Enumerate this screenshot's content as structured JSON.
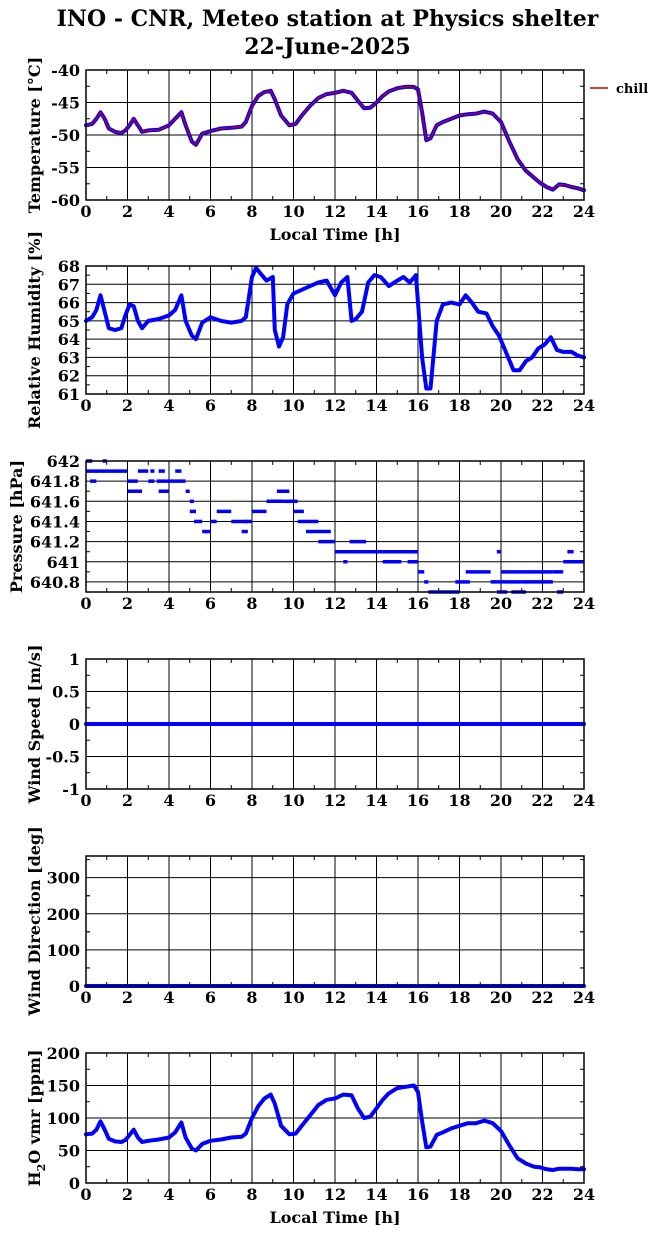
{
  "title": "INO - CNR, Meteo station at Physics shelter",
  "date": "22-June-2025",
  "colors": {
    "series": "#0000ff",
    "chill": "#cc0000",
    "axes": "#000000"
  },
  "chart_data": [
    {
      "type": "line",
      "ylabel_main": "Temperature [",
      "ylabel_unit": "°C",
      "ylabel_tail": "]",
      "xlabel": "Local Time [h]",
      "xlim": [
        0,
        24
      ],
      "xticks": [
        "0",
        "2",
        "4",
        "6",
        "8",
        "10",
        "12",
        "14",
        "16",
        "18",
        "20",
        "22",
        "24"
      ],
      "ylim": [
        -60,
        -40
      ],
      "yticks": [
        -60,
        -55,
        -50,
        -45,
        -40
      ],
      "ytick_labels": [
        "-60",
        "-55",
        "-50",
        "-45",
        "-40"
      ],
      "legend": "chill",
      "series": [
        {
          "name": "chill",
          "style": "line",
          "x": [
            0,
            0.3,
            0.5,
            0.7,
            0.9,
            1.1,
            1.4,
            1.7,
            1.9,
            2.1,
            2.3,
            2.5,
            2.7,
            3.0,
            3.5,
            4.0,
            4.3,
            4.6,
            4.8,
            5.1,
            5.3,
            5.6,
            6.0,
            6.5,
            7.0,
            7.5,
            7.7,
            8.0,
            8.3,
            8.6,
            8.9,
            9.1,
            9.4,
            9.8,
            10.1,
            10.4,
            10.8,
            11.2,
            11.6,
            12.0,
            12.4,
            12.8,
            13.1,
            13.4,
            13.7,
            14.0,
            14.3,
            14.6,
            15.0,
            15.4,
            15.8,
            16.0,
            16.2,
            16.4,
            16.6,
            16.9,
            17.2,
            17.6,
            18.0,
            18.4,
            18.8,
            19.2,
            19.6,
            20.0,
            20.4,
            20.8,
            21.2,
            21.6,
            21.9,
            22.2,
            22.5,
            22.8,
            23.1,
            23.4,
            23.7,
            24.0
          ],
          "y": [
            -48.5,
            -48.3,
            -47.5,
            -46.5,
            -47.5,
            -49.0,
            -49.5,
            -49.7,
            -49.3,
            -48.5,
            -47.5,
            -48.5,
            -49.5,
            -49.3,
            -49.2,
            -48.5,
            -47.5,
            -46.5,
            -48.5,
            -51.0,
            -51.5,
            -49.8,
            -49.4,
            -49.0,
            -48.9,
            -48.7,
            -48.0,
            -45.5,
            -44.0,
            -43.4,
            -43.2,
            -44.5,
            -47.0,
            -48.5,
            -48.3,
            -47.0,
            -45.5,
            -44.3,
            -43.7,
            -43.5,
            -43.2,
            -43.5,
            -44.7,
            -45.9,
            -45.8,
            -45.0,
            -44.0,
            -43.3,
            -42.8,
            -42.6,
            -42.6,
            -43.0,
            -46.5,
            -50.8,
            -50.5,
            -48.5,
            -48.0,
            -47.5,
            -47.0,
            -46.8,
            -46.7,
            -46.4,
            -46.7,
            -48.0,
            -51.0,
            -53.7,
            -55.5,
            -56.6,
            -57.4,
            -58.0,
            -58.4,
            -57.6,
            -57.7,
            -58.0,
            -58.2,
            -58.5
          ]
        }
      ]
    },
    {
      "type": "line",
      "ylabel": "Relative Humidity [%]",
      "xlabel": "",
      "xlim": [
        0,
        24
      ],
      "xticks": [
        "0",
        "2",
        "4",
        "6",
        "8",
        "10",
        "12",
        "14",
        "16",
        "18",
        "20",
        "22",
        "24"
      ],
      "ylim": [
        61,
        68
      ],
      "yticks": [
        61,
        62,
        63,
        64,
        65,
        66,
        67,
        68
      ],
      "ytick_labels": [
        "61",
        "62",
        "63",
        "64",
        "65",
        "66",
        "67",
        "68"
      ],
      "series": [
        {
          "name": "",
          "style": "line",
          "x": [
            0,
            0.3,
            0.5,
            0.7,
            0.9,
            1.1,
            1.4,
            1.7,
            1.9,
            2.1,
            2.3,
            2.5,
            2.7,
            3.0,
            3.5,
            4.0,
            4.3,
            4.6,
            4.8,
            5.1,
            5.3,
            5.6,
            6.0,
            6.5,
            7.0,
            7.5,
            7.7,
            8.0,
            8.2,
            8.4,
            8.7,
            9.0,
            9.1,
            9.3,
            9.5,
            9.7,
            10.0,
            10.4,
            10.8,
            11.2,
            11.6,
            12.0,
            12.3,
            12.6,
            12.8,
            13.0,
            13.3,
            13.6,
            13.9,
            14.2,
            14.6,
            15.0,
            15.3,
            15.6,
            15.9,
            16.0,
            16.2,
            16.4,
            16.6,
            16.9,
            17.2,
            17.6,
            18.0,
            18.3,
            18.6,
            18.9,
            19.3,
            19.6,
            19.9,
            20.2,
            20.6,
            20.9,
            21.2,
            21.5,
            21.8,
            22.1,
            22.4,
            22.7,
            23.0,
            23.4,
            23.7,
            24.0
          ],
          "y": [
            65.0,
            65.2,
            65.6,
            66.4,
            65.5,
            64.6,
            64.5,
            64.6,
            65.3,
            65.9,
            65.8,
            65.0,
            64.6,
            65.0,
            65.1,
            65.3,
            65.6,
            66.4,
            65.0,
            64.2,
            64.0,
            64.9,
            65.2,
            65.0,
            64.9,
            65.0,
            65.2,
            67.4,
            67.9,
            67.6,
            67.2,
            67.4,
            64.5,
            63.6,
            64.1,
            65.9,
            66.5,
            66.7,
            66.9,
            67.1,
            67.2,
            66.4,
            67.1,
            67.4,
            65.0,
            65.1,
            65.5,
            67.1,
            67.5,
            67.4,
            66.9,
            67.2,
            67.4,
            67.1,
            67.5,
            66.0,
            63.0,
            61.3,
            61.3,
            65.0,
            65.9,
            66.0,
            65.9,
            66.4,
            66.0,
            65.5,
            65.4,
            64.7,
            64.2,
            63.4,
            62.3,
            62.3,
            62.8,
            63.0,
            63.5,
            63.7,
            64.1,
            63.4,
            63.3,
            63.3,
            63.1,
            63.0
          ]
        }
      ]
    },
    {
      "type": "scatter",
      "ylabel": "Pressure [hPa]",
      "xlabel": "",
      "xlim": [
        0,
        24
      ],
      "xticks": [
        "0",
        "2",
        "4",
        "6",
        "8",
        "10",
        "12",
        "14",
        "16",
        "18",
        "20",
        "22",
        "24"
      ],
      "ylim": [
        640.7,
        642
      ],
      "yticks": [
        640.8,
        641,
        641.2,
        641.4,
        641.6,
        641.8,
        642
      ],
      "ytick_labels": [
        "640.8",
        "641",
        "641.2",
        "641.4",
        "641.6",
        "641.8",
        "642"
      ],
      "series": [
        {
          "name": "",
          "style": "steps",
          "segments": [
            [
              0.0,
              2.0,
              641.9
            ],
            [
              0.2,
              0.5,
              641.8
            ],
            [
              0.8,
              1.0,
              642.0
            ],
            [
              0.0,
              0.3,
              642.0
            ],
            [
              2.0,
              2.5,
              641.8
            ],
            [
              2.0,
              2.7,
              641.7
            ],
            [
              2.5,
              3.0,
              641.9
            ],
            [
              3.0,
              3.3,
              641.8
            ],
            [
              3.1,
              3.3,
              641.9
            ],
            [
              3.4,
              4.0,
              641.8
            ],
            [
              3.5,
              3.8,
              641.9
            ],
            [
              3.5,
              4.0,
              641.7
            ],
            [
              4.0,
              4.8,
              641.8
            ],
            [
              4.3,
              4.6,
              641.9
            ],
            [
              4.8,
              5.0,
              641.7
            ],
            [
              5.0,
              5.2,
              641.6
            ],
            [
              5.0,
              5.3,
              641.5
            ],
            [
              5.2,
              5.6,
              641.4
            ],
            [
              5.6,
              6.0,
              641.3
            ],
            [
              6.0,
              6.3,
              641.4
            ],
            [
              6.3,
              7.0,
              641.5
            ],
            [
              7.0,
              7.8,
              641.4
            ],
            [
              7.5,
              7.8,
              641.3
            ],
            [
              7.7,
              8.0,
              641.4
            ],
            [
              8.0,
              8.7,
              641.5
            ],
            [
              8.7,
              9.5,
              641.6
            ],
            [
              9.2,
              9.8,
              641.7
            ],
            [
              9.5,
              10.2,
              641.6
            ],
            [
              10.0,
              10.5,
              641.5
            ],
            [
              10.2,
              10.8,
              641.4
            ],
            [
              10.8,
              11.2,
              641.4
            ],
            [
              10.6,
              11.8,
              641.3
            ],
            [
              11.2,
              12.0,
              641.2
            ],
            [
              12.0,
              14.3,
              641.1
            ],
            [
              12.7,
              13.5,
              641.2
            ],
            [
              12.4,
              12.6,
              641.0
            ],
            [
              14.3,
              16.0,
              641.1
            ],
            [
              14.3,
              15.2,
              641.0
            ],
            [
              15.5,
              16.0,
              641.0
            ],
            [
              16.0,
              16.3,
              640.9
            ],
            [
              16.3,
              16.5,
              640.8
            ],
            [
              16.5,
              18.0,
              640.7
            ],
            [
              17.8,
              18.5,
              640.8
            ],
            [
              18.3,
              19.5,
              640.9
            ],
            [
              19.5,
              21.0,
              640.8
            ],
            [
              19.8,
              20.3,
              640.7
            ],
            [
              20.0,
              22.5,
              640.9
            ],
            [
              20.5,
              21.2,
              640.7
            ],
            [
              21.0,
              22.5,
              640.8
            ],
            [
              22.5,
              23.0,
              640.9
            ],
            [
              23.0,
              24.0,
              641.0
            ],
            [
              23.2,
              23.5,
              641.1
            ],
            [
              22.7,
              23.0,
              640.7
            ],
            [
              19.8,
              20.0,
              641.1
            ]
          ]
        }
      ]
    },
    {
      "type": "line",
      "ylabel": "Wind Speed [m/s]",
      "xlabel": "",
      "xlim": [
        0,
        24
      ],
      "xticks": [
        "0",
        "2",
        "4",
        "6",
        "8",
        "10",
        "12",
        "14",
        "16",
        "18",
        "20",
        "22",
        "24"
      ],
      "ylim": [
        -1,
        1
      ],
      "yticks": [
        -1,
        -0.5,
        0,
        0.5,
        1
      ],
      "ytick_labels": [
        "-1",
        "-0.5",
        "0",
        "0.5",
        "1"
      ],
      "series": [
        {
          "name": "",
          "style": "line",
          "x": [
            0,
            24
          ],
          "y": [
            0,
            0
          ]
        }
      ]
    },
    {
      "type": "line",
      "ylabel": "Wind Direction [deg]",
      "xlabel": "",
      "xlim": [
        0,
        24
      ],
      "xticks": [
        "0",
        "2",
        "4",
        "6",
        "8",
        "10",
        "12",
        "14",
        "16",
        "18",
        "20",
        "22",
        "24"
      ],
      "ylim": [
        0,
        360
      ],
      "yticks": [
        0,
        100,
        200,
        300
      ],
      "ytick_labels": [
        "0",
        "100",
        "200",
        "300"
      ],
      "series": [
        {
          "name": "",
          "style": "line",
          "x": [
            0,
            24
          ],
          "y": [
            0,
            0
          ]
        }
      ]
    },
    {
      "type": "line",
      "ylabel_main": "H",
      "ylabel_sub": "2",
      "ylabel_tail": "O vmr [ppm]",
      "xlabel": "Local Time [h]",
      "xlim": [
        0,
        24
      ],
      "xticks": [
        "0",
        "2",
        "4",
        "6",
        "8",
        "10",
        "12",
        "14",
        "16",
        "18",
        "20",
        "22",
        "24"
      ],
      "ylim": [
        0,
        200
      ],
      "yticks": [
        0,
        50,
        100,
        150,
        200
      ],
      "ytick_labels": [
        "0",
        "50",
        "100",
        "150",
        "200"
      ],
      "series": [
        {
          "name": "",
          "style": "line",
          "x": [
            0,
            0.3,
            0.5,
            0.7,
            0.9,
            1.1,
            1.4,
            1.7,
            1.9,
            2.1,
            2.3,
            2.5,
            2.7,
            3.0,
            3.5,
            4.0,
            4.3,
            4.6,
            4.8,
            5.1,
            5.3,
            5.6,
            6.0,
            6.5,
            7.0,
            7.5,
            7.7,
            8.0,
            8.3,
            8.6,
            8.9,
            9.1,
            9.4,
            9.8,
            10.1,
            10.4,
            10.8,
            11.2,
            11.6,
            12.0,
            12.4,
            12.8,
            13.1,
            13.4,
            13.7,
            14.0,
            14.3,
            14.6,
            15.0,
            15.4,
            15.8,
            16.0,
            16.2,
            16.4,
            16.6,
            16.9,
            17.2,
            17.6,
            18.0,
            18.4,
            18.8,
            19.2,
            19.6,
            20.0,
            20.4,
            20.8,
            21.2,
            21.6,
            21.9,
            22.2,
            22.5,
            22.8,
            23.1,
            23.4,
            23.7,
            24.0
          ],
          "y": [
            75,
            76,
            82,
            95,
            82,
            68,
            64,
            63,
            66,
            74,
            82,
            70,
            63,
            65,
            67,
            70,
            78,
            93,
            70,
            53,
            50,
            60,
            65,
            67,
            70,
            71,
            76,
            100,
            118,
            130,
            136,
            122,
            88,
            75,
            76,
            88,
            104,
            120,
            128,
            130,
            136,
            135,
            115,
            100,
            102,
            115,
            128,
            138,
            146,
            148,
            150,
            140,
            95,
            55,
            56,
            74,
            78,
            84,
            88,
            92,
            92,
            96,
            92,
            80,
            58,
            38,
            30,
            25,
            24,
            21,
            20,
            22,
            22,
            22,
            21,
            21
          ]
        }
      ]
    }
  ]
}
